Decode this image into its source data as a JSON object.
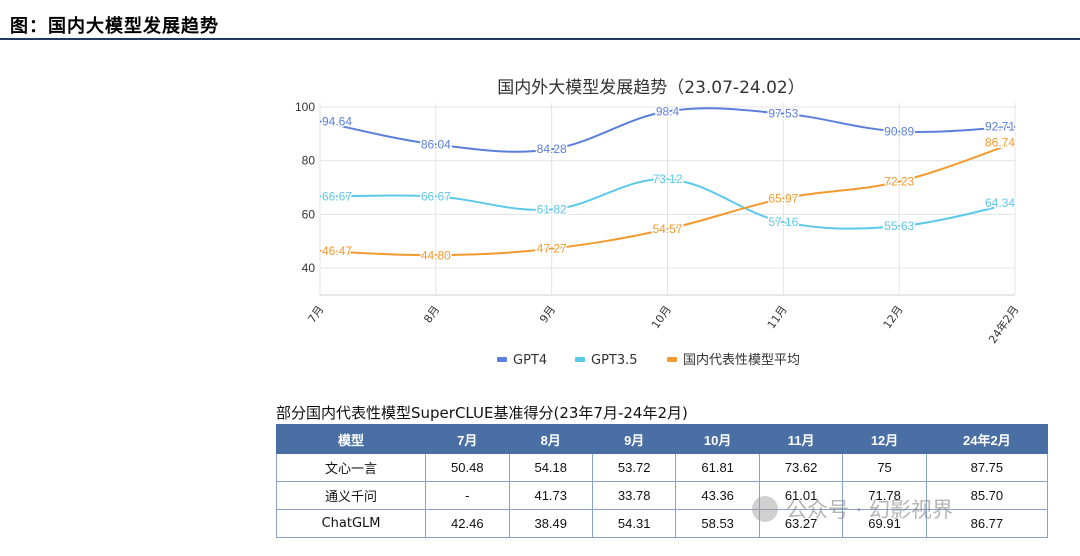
{
  "figure": {
    "label": "图：国内大模型发展趋势"
  },
  "chart_data": {
    "type": "line",
    "title": "国内外大模型发展趋势（23.07-24.02）",
    "categories": [
      "7月",
      "8月",
      "9月",
      "10月",
      "11月",
      "12月",
      "24年2月"
    ],
    "ylim": [
      30,
      100
    ],
    "yticks": [
      40,
      60,
      80,
      100
    ],
    "grid": true,
    "legend_position": "bottom",
    "series": [
      {
        "name": "GPT4",
        "color": "#5b7fdb",
        "values": [
          94.64,
          86.04,
          84.28,
          98.4,
          97.53,
          90.89,
          92.71
        ],
        "labels": [
          "94.64",
          "86.04",
          "84.28",
          "98.4",
          "97.53",
          "90.89",
          "92.71"
        ]
      },
      {
        "name": "GPT3.5",
        "color": "#5cc8ea",
        "values": [
          66.67,
          66.67,
          61.82,
          73.12,
          57.16,
          55.63,
          64.34
        ],
        "labels": [
          "66.67",
          "66.67",
          "61.82",
          "73.12",
          "57.16",
          "55.63",
          "64.34"
        ]
      },
      {
        "name": "国内代表性模型平均",
        "color": "#f29a2e",
        "values": [
          46.47,
          44.8,
          47.27,
          54.57,
          65.97,
          72.23,
          86.74
        ],
        "labels": [
          "46.47",
          "44.80",
          "47.27",
          "54.57",
          "65.97",
          "72.23",
          "86.74"
        ]
      }
    ]
  },
  "table": {
    "caption": "部分国内代表性模型SuperCLUE基准得分(23年7月-24年2月)",
    "header_color": "#4a6fa5",
    "columns": [
      "模型",
      "7月",
      "8月",
      "9月",
      "10月",
      "11月",
      "12月",
      "24年2月"
    ],
    "rows": [
      [
        "文心一言",
        "50.48",
        "54.18",
        "53.72",
        "61.81",
        "73.62",
        "75",
        "87.75"
      ],
      [
        "通义千问",
        "-",
        "41.73",
        "33.78",
        "43.36",
        "61.01",
        "71.78",
        "85.70"
      ],
      [
        "ChatGLM",
        "42.46",
        "38.49",
        "54.31",
        "58.53",
        "63.27",
        "69.91",
        "86.77"
      ]
    ]
  },
  "watermark": {
    "text": "公众号 · 幻影视界",
    "icon": "wechat-icon"
  }
}
